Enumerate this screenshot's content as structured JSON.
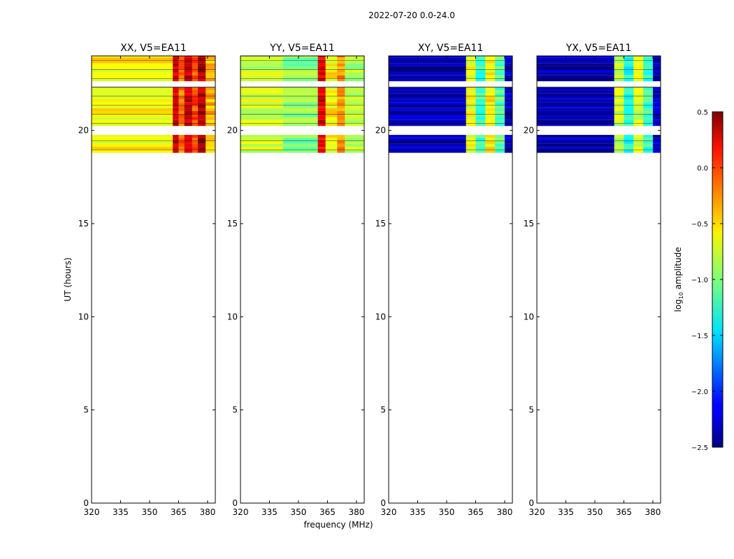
{
  "figure": {
    "suptitle": "2022-07-20 0.0-24.0",
    "xlabel": "frequency (MHz)",
    "ylabel": "UT (hours)"
  },
  "colorbar": {
    "label": "log10 amplitude",
    "label_prefix": "log",
    "label_sub": "10",
    "label_suffix": " amplitude",
    "range": [
      -2.5,
      0.5
    ],
    "ticks": [
      0.5,
      0.0,
      -0.5,
      -1.0,
      -1.5,
      -2.0,
      -2.5
    ],
    "tick_labels": [
      "0.5",
      "0.0",
      "−0.5",
      "−1.0",
      "−1.5",
      "−2.0",
      "−2.5"
    ],
    "colormap": "jet"
  },
  "chart_data": [
    {
      "type": "heatmap",
      "title": "XX, V5=EA11",
      "xlim": [
        320,
        384
      ],
      "ylim": [
        0,
        24
      ],
      "xticks": [
        320,
        335,
        350,
        365,
        380
      ],
      "xtick_labels": [
        "320",
        "335",
        "350",
        "365",
        "380"
      ],
      "yticks": [
        0,
        5,
        10,
        15,
        20
      ],
      "ytick_labels": [
        "0",
        "5",
        "10",
        "15",
        "20"
      ],
      "data_ut_range": [
        18.8,
        24.0
      ],
      "bands": [
        {
          "f0": 320,
          "f1": 362,
          "v": -0.6
        },
        {
          "f0": 362,
          "f1": 365,
          "v": 0.25
        },
        {
          "f0": 365,
          "f1": 368,
          "v": -0.2
        },
        {
          "f0": 368,
          "f1": 372,
          "v": 0.3
        },
        {
          "f0": 372,
          "f1": 375,
          "v": -0.1
        },
        {
          "f0": 375,
          "f1": 379,
          "v": 0.35
        },
        {
          "f0": 379,
          "f1": 384,
          "v": -0.4
        }
      ]
    },
    {
      "type": "heatmap",
      "title": "YY, V5=EA11",
      "xlim": [
        320,
        384
      ],
      "ylim": [
        0,
        24
      ],
      "xticks": [
        320,
        335,
        350,
        365,
        380
      ],
      "xtick_labels": [
        "320",
        "335",
        "350",
        "365",
        "380"
      ],
      "yticks": [
        0,
        5,
        10,
        15,
        20
      ],
      "ytick_labels": [
        "0",
        "5",
        "10",
        "15",
        "20"
      ],
      "data_ut_range": [
        18.8,
        24.0
      ],
      "bands": [
        {
          "f0": 320,
          "f1": 342,
          "v": -0.75
        },
        {
          "f0": 342,
          "f1": 360,
          "v": -0.95
        },
        {
          "f0": 360,
          "f1": 364,
          "v": 0.2
        },
        {
          "f0": 364,
          "f1": 370,
          "v": -0.6
        },
        {
          "f0": 370,
          "f1": 374,
          "v": -0.3
        },
        {
          "f0": 374,
          "f1": 384,
          "v": -0.85
        }
      ]
    },
    {
      "type": "heatmap",
      "title": "XY, V5=EA11",
      "xlim": [
        320,
        384
      ],
      "ylim": [
        0,
        24
      ],
      "xticks": [
        320,
        335,
        350,
        365,
        380
      ],
      "xtick_labels": [
        "320",
        "335",
        "350",
        "365",
        "380"
      ],
      "yticks": [
        0,
        5,
        10,
        15,
        20
      ],
      "ytick_labels": [
        "0",
        "5",
        "10",
        "15",
        "20"
      ],
      "data_ut_range": [
        18.8,
        24.0
      ],
      "bands": [
        {
          "f0": 320,
          "f1": 360,
          "v": -2.35
        },
        {
          "f0": 360,
          "f1": 365,
          "v": -0.7
        },
        {
          "f0": 365,
          "f1": 370,
          "v": -1.2
        },
        {
          "f0": 370,
          "f1": 375,
          "v": -0.6
        },
        {
          "f0": 375,
          "f1": 380,
          "v": -1.1
        },
        {
          "f0": 380,
          "f1": 384,
          "v": -2.3
        }
      ]
    },
    {
      "type": "heatmap",
      "title": "YX, V5=EA11",
      "xlim": [
        320,
        384
      ],
      "ylim": [
        0,
        24
      ],
      "xticks": [
        320,
        335,
        350,
        365,
        380
      ],
      "xtick_labels": [
        "320",
        "335",
        "350",
        "365",
        "380"
      ],
      "yticks": [
        0,
        5,
        10,
        15,
        20
      ],
      "ytick_labels": [
        "0",
        "5",
        "10",
        "15",
        "20"
      ],
      "data_ut_range": [
        18.8,
        24.0
      ],
      "bands": [
        {
          "f0": 320,
          "f1": 360,
          "v": -2.35
        },
        {
          "f0": 360,
          "f1": 365,
          "v": -0.8
        },
        {
          "f0": 365,
          "f1": 370,
          "v": -1.3
        },
        {
          "f0": 370,
          "f1": 375,
          "v": -0.7
        },
        {
          "f0": 375,
          "f1": 380,
          "v": -1.2
        },
        {
          "f0": 380,
          "f1": 384,
          "v": -2.3
        }
      ]
    }
  ]
}
